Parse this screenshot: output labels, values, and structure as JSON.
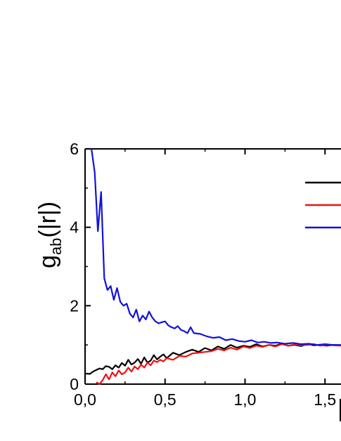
{
  "chart_data": {
    "type": "line",
    "title": "",
    "xlabel": "",
    "ylabel": {
      "base": "g",
      "sub": "ab",
      "rest": "(|r|)"
    },
    "xlim": [
      0.0,
      1.6
    ],
    "ylim": [
      0,
      6
    ],
    "x_ticks": [
      {
        "value": 0.0,
        "label": "0,0"
      },
      {
        "value": 0.5,
        "label": "0,5"
      },
      {
        "value": 1.0,
        "label": "1,0"
      },
      {
        "value": 1.5,
        "label": "1,5"
      }
    ],
    "y_ticks": [
      {
        "value": 0,
        "label": "0"
      },
      {
        "value": 2,
        "label": "2"
      },
      {
        "value": 4,
        "label": "4"
      },
      {
        "value": 6,
        "label": "6"
      }
    ],
    "grid": false,
    "legend_position": "top-right",
    "series": [
      {
        "color": "#000000",
        "x": [
          0.0,
          0.03,
          0.05,
          0.07,
          0.09,
          0.11,
          0.13,
          0.15,
          0.17,
          0.19,
          0.21,
          0.23,
          0.25,
          0.27,
          0.29,
          0.31,
          0.33,
          0.35,
          0.37,
          0.39,
          0.41,
          0.43,
          0.45,
          0.47,
          0.49,
          0.51,
          0.55,
          0.59,
          0.63,
          0.67,
          0.71,
          0.75,
          0.79,
          0.83,
          0.87,
          0.91,
          0.95,
          0.99,
          1.03,
          1.07,
          1.11,
          1.15,
          1.19,
          1.23,
          1.27,
          1.31,
          1.35,
          1.39,
          1.43,
          1.47,
          1.51,
          1.55,
          1.6
        ],
        "y": [
          0.27,
          0.26,
          0.32,
          0.36,
          0.4,
          0.38,
          0.46,
          0.44,
          0.38,
          0.48,
          0.42,
          0.54,
          0.47,
          0.62,
          0.5,
          0.55,
          0.64,
          0.52,
          0.68,
          0.55,
          0.6,
          0.74,
          0.63,
          0.7,
          0.76,
          0.66,
          0.8,
          0.74,
          0.82,
          0.88,
          0.82,
          0.92,
          0.86,
          0.96,
          0.9,
          1.0,
          0.93,
          0.98,
          0.95,
          1.02,
          0.96,
          1.0,
          0.98,
          1.03,
          0.98,
          1.0,
          0.97,
          1.02,
          0.99,
          1.0,
          0.98,
          1.0,
          0.99
        ]
      },
      {
        "color": "#ee1111",
        "x": [
          0.07,
          0.09,
          0.11,
          0.13,
          0.15,
          0.17,
          0.19,
          0.21,
          0.23,
          0.25,
          0.27,
          0.29,
          0.31,
          0.33,
          0.35,
          0.37,
          0.39,
          0.41,
          0.43,
          0.45,
          0.47,
          0.49,
          0.51,
          0.55,
          0.59,
          0.63,
          0.67,
          0.71,
          0.75,
          0.79,
          0.83,
          0.87,
          0.91,
          0.95,
          0.99,
          1.03,
          1.07,
          1.11,
          1.15,
          1.19,
          1.23,
          1.27,
          1.31,
          1.35,
          1.39,
          1.43,
          1.47,
          1.51,
          1.55,
          1.6
        ],
        "y": [
          0.05,
          0.0,
          0.1,
          0.25,
          0.12,
          0.3,
          0.2,
          0.35,
          0.25,
          0.3,
          0.42,
          0.32,
          0.45,
          0.38,
          0.5,
          0.42,
          0.55,
          0.48,
          0.6,
          0.56,
          0.62,
          0.58,
          0.66,
          0.62,
          0.72,
          0.7,
          0.78,
          0.8,
          0.82,
          0.84,
          0.9,
          0.86,
          0.93,
          0.88,
          0.96,
          0.92,
          0.98,
          0.95,
          1.0,
          0.96,
          1.02,
          0.98,
          1.01,
          0.99,
          1.0,
          1.02,
          0.98,
          1.0,
          0.99,
          0.98
        ]
      },
      {
        "color": "#1111dd",
        "x": [
          0.0,
          0.04,
          0.06,
          0.08,
          0.1,
          0.12,
          0.14,
          0.16,
          0.18,
          0.2,
          0.22,
          0.24,
          0.26,
          0.28,
          0.3,
          0.32,
          0.34,
          0.36,
          0.38,
          0.4,
          0.42,
          0.44,
          0.46,
          0.48,
          0.5,
          0.52,
          0.54,
          0.56,
          0.58,
          0.6,
          0.62,
          0.64,
          0.66,
          0.68,
          0.72,
          0.76,
          0.8,
          0.84,
          0.88,
          0.92,
          0.96,
          1.0,
          1.04,
          1.08,
          1.12,
          1.16,
          1.2,
          1.25,
          1.3,
          1.35,
          1.4,
          1.45,
          1.5,
          1.55,
          1.6
        ],
        "y": [
          6.0,
          6.0,
          5.4,
          3.9,
          4.9,
          2.7,
          2.4,
          2.5,
          2.15,
          2.45,
          2.1,
          2.0,
          2.05,
          1.8,
          1.7,
          1.9,
          1.6,
          1.75,
          1.65,
          1.85,
          1.7,
          1.6,
          1.55,
          1.58,
          1.6,
          1.5,
          1.45,
          1.42,
          1.48,
          1.38,
          1.35,
          1.3,
          1.45,
          1.3,
          1.28,
          1.22,
          1.18,
          1.2,
          1.12,
          1.15,
          1.1,
          1.08,
          1.12,
          1.06,
          1.08,
          1.05,
          1.06,
          1.03,
          1.05,
          1.02,
          1.03,
          1.0,
          1.02,
          1.0,
          1.0
        ]
      }
    ]
  }
}
